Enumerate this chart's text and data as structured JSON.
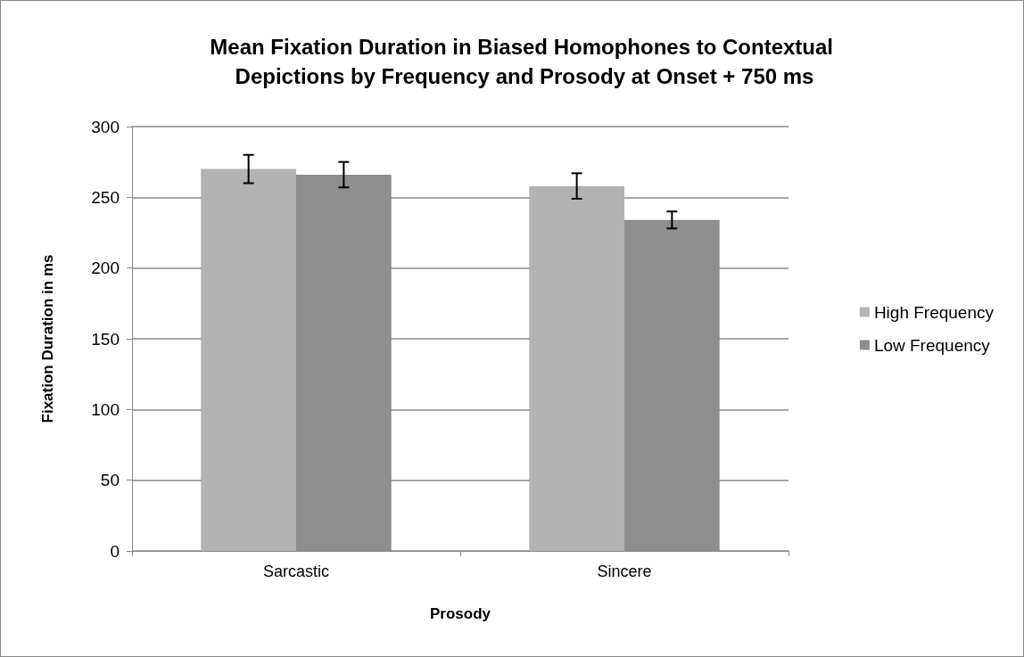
{
  "chart_data": {
    "type": "bar",
    "title": "Mean Fixation Duration in Biased Homophones to Contextual Depictions by Frequency and Prosody at Onset + 750 ms",
    "xlabel": "Prosody",
    "ylabel": "Fixation Duration in ms",
    "categories": [
      "Sarcastic",
      "Sincere"
    ],
    "series": [
      {
        "name": "High Frequency",
        "color": "#b3b3b3",
        "values": [
          270,
          258
        ],
        "errors": [
          10,
          9
        ]
      },
      {
        "name": "Low Frequency",
        "color": "#8e8e8e",
        "values": [
          266,
          234
        ],
        "errors": [
          9,
          6
        ]
      }
    ],
    "ylim": [
      0,
      300
    ],
    "yticks": [
      0,
      50,
      100,
      150,
      200,
      250,
      300
    ],
    "grid": "y",
    "legend": "right"
  }
}
